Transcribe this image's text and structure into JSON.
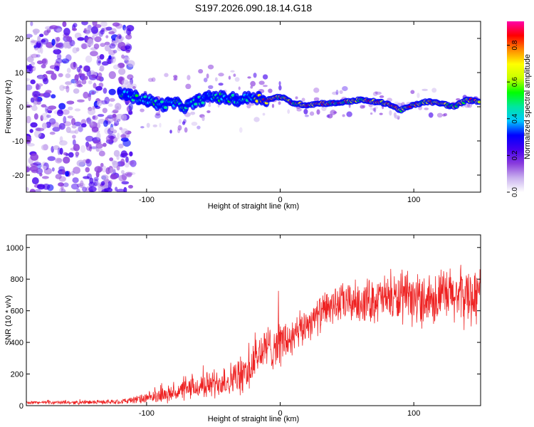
{
  "title": "S197.2026.090.18.14.G18",
  "chart_data": [
    {
      "type": "heatmap",
      "name": "spectrogram",
      "xlabel": "Height of straight line (km)",
      "ylabel": "Frequency (Hz)",
      "xlim": [
        -190,
        150
      ],
      "ylim": [
        -25,
        25
      ],
      "xticks": [
        -100,
        0,
        100
      ],
      "xtick_labels": [
        "-100",
        "0",
        "100"
      ],
      "yticks": [
        -20,
        -10,
        0,
        10,
        20
      ],
      "ytick_labels": [
        "-20",
        "-10",
        "0",
        "10",
        "20"
      ],
      "colorbar": {
        "label": "Normalized spectral amplitude",
        "range": [
          0,
          0.93
        ],
        "ticks": [
          0.0,
          0.2,
          0.4,
          0.6,
          0.8
        ],
        "tick_labels": [
          "0.0",
          "0.2",
          "0.4",
          "0.6",
          "0.8"
        ],
        "colors": [
          "#ffffff",
          "#c9b1ee",
          "#8a3ddd",
          "#4400ee",
          "#0000ff",
          "#00c8ff",
          "#00e6a0",
          "#00ff00",
          "#c8ff00",
          "#ffff00",
          "#ff8800",
          "#ff0000",
          "#ff00aa"
        ]
      },
      "ridge_frequency": {
        "x": [
          -120,
          -110,
          -100,
          -90,
          -80,
          -70,
          -60,
          -50,
          -40,
          -30,
          -20,
          -10,
          0,
          10,
          20,
          30,
          40,
          50,
          60,
          70,
          80,
          90,
          100,
          110,
          120,
          130,
          140,
          150
        ],
        "y": [
          4,
          3,
          2,
          0.5,
          1,
          0,
          2,
          3,
          2.5,
          2,
          3,
          2,
          3,
          1,
          0.5,
          1,
          1,
          1.5,
          2,
          1.5,
          1,
          -1,
          0.5,
          1.5,
          1,
          0,
          2,
          1.5
        ]
      },
      "noise_region": [
        -190,
        -110
      ]
    },
    {
      "type": "line",
      "name": "snr",
      "xlabel": "Height of straight line (km)",
      "ylabel": "SNR (10 * v/v)",
      "xlim": [
        -190,
        150
      ],
      "ylim": [
        0,
        1080
      ],
      "xticks": [
        -100,
        0,
        100
      ],
      "xtick_labels": [
        "-100",
        "0",
        "100"
      ],
      "yticks": [
        0,
        200,
        400,
        600,
        800,
        1000
      ],
      "ytick_labels": [
        "0",
        "200",
        "400",
        "600",
        "800",
        "1000"
      ],
      "color": "#ee2222",
      "trend": {
        "x": [
          -190,
          -150,
          -120,
          -100,
          -80,
          -60,
          -40,
          -25,
          -15,
          0,
          10,
          20,
          30,
          40,
          60,
          80,
          100,
          120,
          150
        ],
        "y": [
          20,
          20,
          25,
          45,
          80,
          120,
          160,
          200,
          340,
          400,
          420,
          520,
          580,
          640,
          660,
          680,
          670,
          690,
          700
        ]
      },
      "noise_amplitude": {
        "x": [
          -190,
          -120,
          -80,
          -40,
          -20,
          0,
          20,
          40,
          80,
          150
        ],
        "y": [
          10,
          15,
          60,
          110,
          150,
          160,
          120,
          130,
          160,
          210
        ]
      }
    }
  ]
}
